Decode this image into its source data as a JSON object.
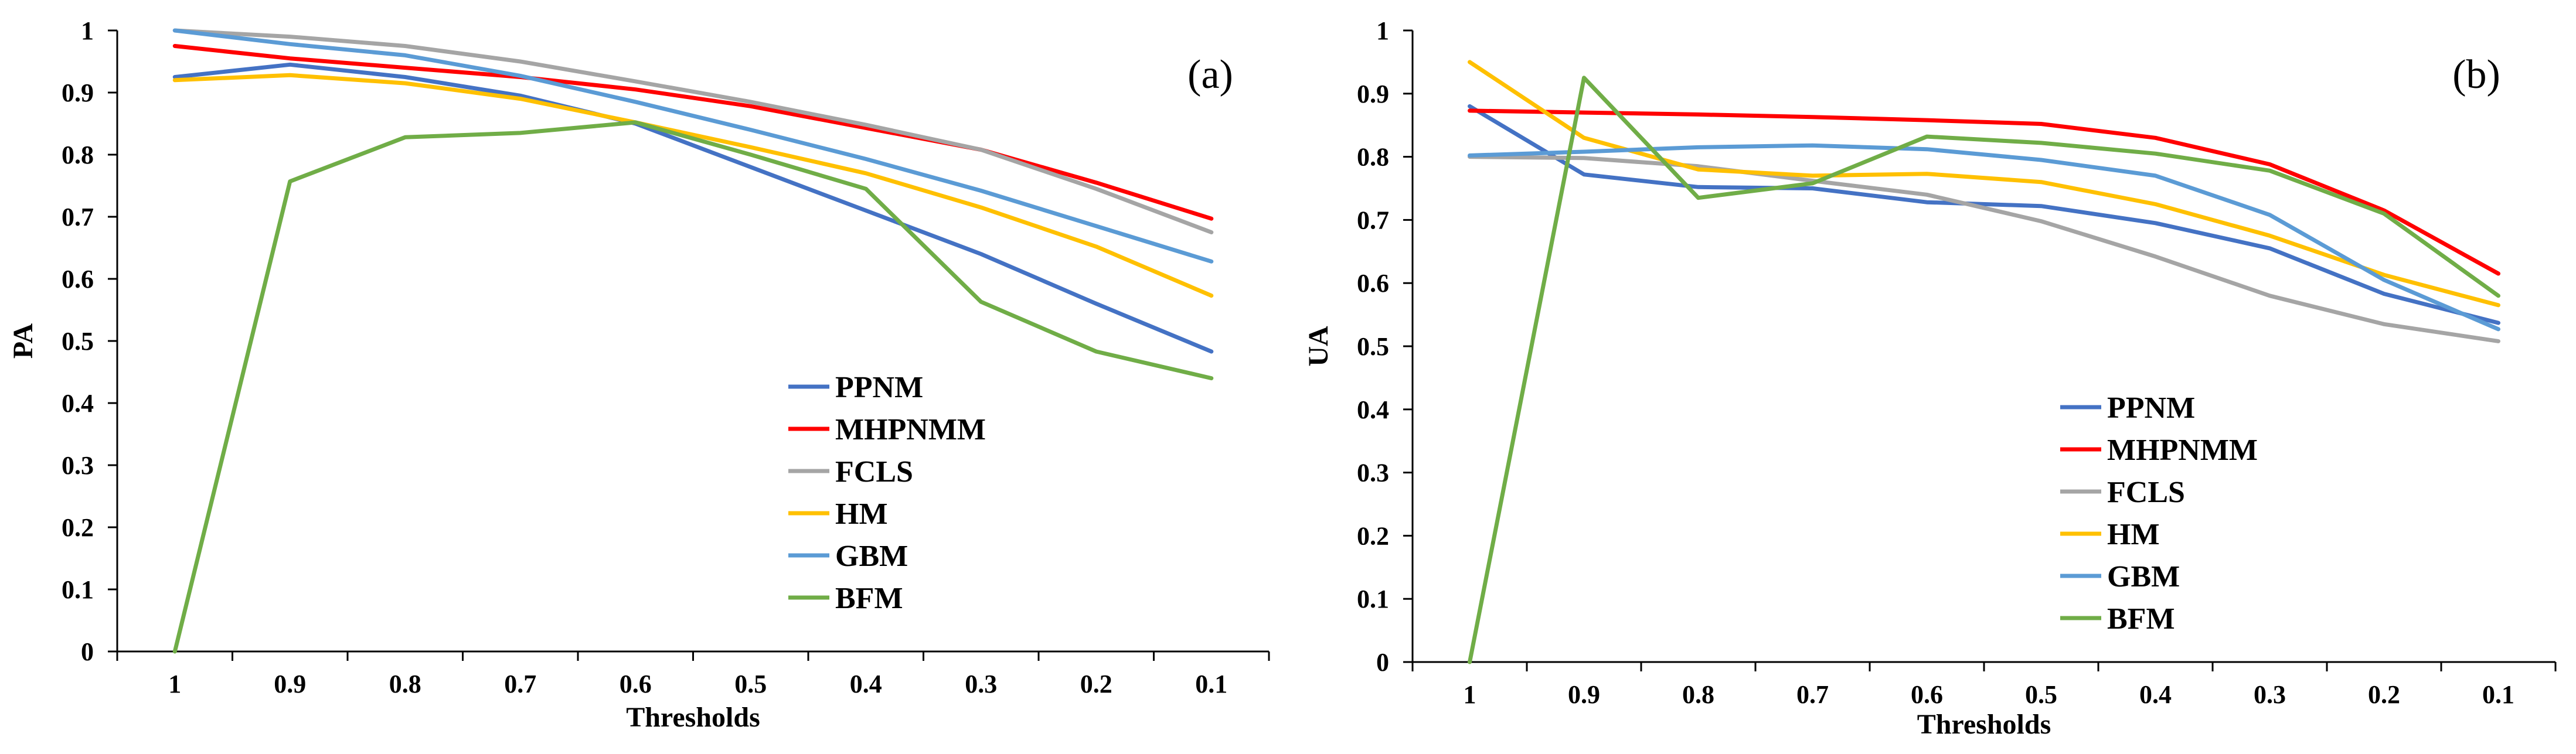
{
  "chart_data": [
    {
      "type": "line",
      "panel_label": "(a)",
      "xlabel": "Thresholds",
      "ylabel": "PA",
      "categories": [
        "1",
        "0.9",
        "0.8",
        "0.7",
        "0.6",
        "0.5",
        "0.4",
        "0.3",
        "0.2",
        "0.1"
      ],
      "ylim": [
        0,
        1
      ],
      "yticks": [
        "0",
        "0.1",
        "0.2",
        "0.3",
        "0.4",
        "0.5",
        "0.6",
        "0.7",
        "0.8",
        "0.9",
        "1"
      ],
      "grid": false,
      "legend_position": "bottom-center",
      "series": [
        {
          "name": "PPNM",
          "color": "#4472C4",
          "values": [
            0.925,
            0.945,
            0.925,
            0.895,
            0.85,
            0.78,
            0.71,
            0.64,
            0.56,
            0.483
          ]
        },
        {
          "name": "MHPNMM",
          "color": "#FF0000",
          "values": [
            0.975,
            0.955,
            0.94,
            0.925,
            0.905,
            0.878,
            0.843,
            0.808,
            0.755,
            0.697
          ]
        },
        {
          "name": "FCLS",
          "color": "#A5A5A5",
          "values": [
            1.0,
            0.99,
            0.975,
            0.95,
            0.918,
            0.885,
            0.848,
            0.808,
            0.745,
            0.675
          ]
        },
        {
          "name": "HM",
          "color": "#FFC000",
          "values": [
            0.92,
            0.928,
            0.915,
            0.89,
            0.852,
            0.812,
            0.77,
            0.715,
            0.652,
            0.573
          ]
        },
        {
          "name": "GBM",
          "color": "#5B9BD5",
          "values": [
            1.0,
            0.978,
            0.96,
            0.927,
            0.885,
            0.84,
            0.793,
            0.742,
            0.685,
            0.628
          ]
        },
        {
          "name": "BFM",
          "color": "#70AD47",
          "values": [
            0.0,
            0.757,
            0.828,
            0.835,
            0.852,
            0.8,
            0.745,
            0.563,
            0.483,
            0.44
          ]
        }
      ]
    },
    {
      "type": "line",
      "panel_label": "(b)",
      "xlabel": "Thresholds",
      "ylabel": "UA",
      "categories": [
        "1",
        "0.9",
        "0.8",
        "0.7",
        "0.6",
        "0.5",
        "0.4",
        "0.3",
        "0.2",
        "0.1"
      ],
      "ylim": [
        0,
        1
      ],
      "yticks": [
        "0",
        "0.1",
        "0.2",
        "0.3",
        "0.4",
        "0.5",
        "0.6",
        "0.7",
        "0.8",
        "0.9",
        "1"
      ],
      "grid": false,
      "legend_position": "bottom-center",
      "series": [
        {
          "name": "PPNM",
          "color": "#4472C4",
          "values": [
            0.88,
            0.772,
            0.752,
            0.75,
            0.728,
            0.722,
            0.695,
            0.655,
            0.583,
            0.537
          ]
        },
        {
          "name": "MHPNMM",
          "color": "#FF0000",
          "values": [
            0.873,
            0.87,
            0.867,
            0.863,
            0.858,
            0.852,
            0.83,
            0.788,
            0.715,
            0.615
          ]
        },
        {
          "name": "FCLS",
          "color": "#A5A5A5",
          "values": [
            0.8,
            0.798,
            0.785,
            0.762,
            0.74,
            0.698,
            0.642,
            0.58,
            0.535,
            0.508
          ]
        },
        {
          "name": "HM",
          "color": "#FFC000",
          "values": [
            0.95,
            0.83,
            0.78,
            0.77,
            0.773,
            0.76,
            0.725,
            0.675,
            0.613,
            0.565
          ]
        },
        {
          "name": "GBM",
          "color": "#5B9BD5",
          "values": [
            0.802,
            0.808,
            0.815,
            0.818,
            0.812,
            0.795,
            0.77,
            0.708,
            0.605,
            0.527
          ]
        },
        {
          "name": "BFM",
          "color": "#70AD47",
          "values": [
            0.0,
            0.925,
            0.735,
            0.758,
            0.832,
            0.822,
            0.805,
            0.778,
            0.71,
            0.58
          ]
        }
      ]
    }
  ]
}
